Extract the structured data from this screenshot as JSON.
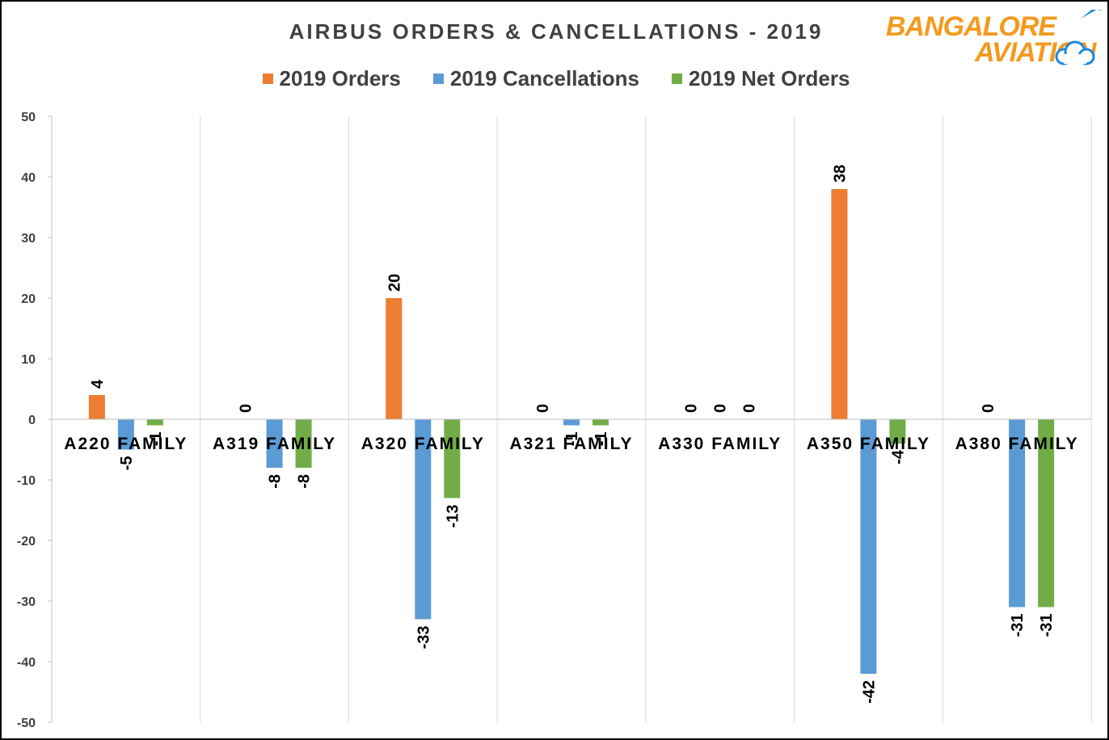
{
  "chart_data": {
    "type": "bar",
    "title": "AIRBUS ORDERS & CANCELLATIONS - 2019",
    "xlabel": "",
    "ylabel": "",
    "categories": [
      "A220 FAMILY",
      "A319 FAMILY",
      "A320 FAMILY",
      "A321 FAMILY",
      "A330 FAMILY",
      "A350 FAMILY",
      "A380 FAMILY"
    ],
    "series": [
      {
        "name": "2019 Orders",
        "color": "#ED7D31",
        "values": [
          4,
          0,
          20,
          0,
          0,
          38,
          0
        ]
      },
      {
        "name": "2019 Cancellations",
        "color": "#5B9BD5",
        "values": [
          -5,
          -8,
          -33,
          -1,
          0,
          -42,
          -31
        ]
      },
      {
        "name": "2019 Net Orders",
        "color": "#70AD47",
        "values": [
          -1,
          -8,
          -13,
          -1,
          0,
          -4,
          -31
        ]
      }
    ],
    "ylim": [
      -50,
      50
    ],
    "yticks": [
      50,
      40,
      30,
      20,
      10,
      0,
      -10,
      -20,
      -30,
      -40,
      -50
    ],
    "grid": {
      "horizontal": false,
      "vertical_category_separators": true
    },
    "legend_position": "top-center",
    "data_labels": "rotated-vertical"
  },
  "logo": {
    "line1": "BANGALORE",
    "line2": "AVIATION",
    "colors": {
      "orange": "#F39A1E",
      "blue": "#1E88D9"
    }
  },
  "colors": {
    "axis_text": "#404040",
    "grid": "#D9D9D9",
    "axis_line": "#BFBFBF"
  }
}
